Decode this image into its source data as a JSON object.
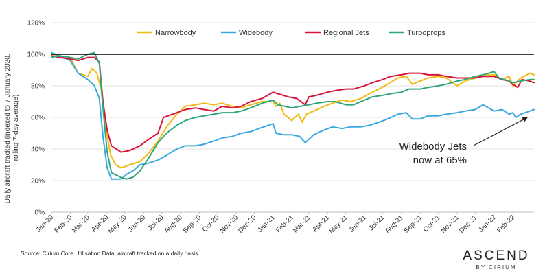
{
  "chart_data": {
    "type": "line",
    "title": "",
    "ylabel_lines": [
      "Daily aircraft tracked (indexed to 7 January 2020,",
      "rolling 7-day average)"
    ],
    "xlabel": "",
    "ylim": [
      0,
      120
    ],
    "yticks": [
      0,
      20,
      40,
      60,
      80,
      100,
      120
    ],
    "ytick_labels": [
      "0%",
      "20%",
      "40%",
      "60%",
      "80%",
      "100%",
      "120%"
    ],
    "x_start": "2020-01-07",
    "x_end": "2022-03-14",
    "x_ticks": [
      {
        "date": "2020-01-07",
        "label": "Jan-20"
      },
      {
        "date": "2020-02-07",
        "label": "Feb-20"
      },
      {
        "date": "2020-03-07",
        "label": "Mar-20"
      },
      {
        "date": "2020-04-07",
        "label": "Apr-20"
      },
      {
        "date": "2020-05-07",
        "label": "May-20"
      },
      {
        "date": "2020-06-07",
        "label": "Jun-20"
      },
      {
        "date": "2020-07-07",
        "label": "Jul-20"
      },
      {
        "date": "2020-08-07",
        "label": "Aug-20"
      },
      {
        "date": "2020-09-07",
        "label": "Sep-20"
      },
      {
        "date": "2020-10-07",
        "label": "Oct-20"
      },
      {
        "date": "2020-11-07",
        "label": "Nov-20"
      },
      {
        "date": "2020-12-07",
        "label": "Dec-20"
      },
      {
        "date": "2021-01-07",
        "label": "Jan-21"
      },
      {
        "date": "2021-02-07",
        "label": "Feb-21"
      },
      {
        "date": "2021-03-07",
        "label": "Mar-21"
      },
      {
        "date": "2021-04-07",
        "label": "Apr-21"
      },
      {
        "date": "2021-05-07",
        "label": "May-21"
      },
      {
        "date": "2021-06-07",
        "label": "Jun-21"
      },
      {
        "date": "2021-07-07",
        "label": "Jul-21"
      },
      {
        "date": "2021-08-07",
        "label": "Aug-21"
      },
      {
        "date": "2021-09-07",
        "label": "Sep-21"
      },
      {
        "date": "2021-10-07",
        "label": "Oct-21"
      },
      {
        "date": "2021-11-07",
        "label": "Nov-21"
      },
      {
        "date": "2021-12-07",
        "label": "Dec-21"
      },
      {
        "date": "2022-01-07",
        "label": "Jan-22"
      },
      {
        "date": "2022-02-07",
        "label": "Feb-22"
      }
    ],
    "reference_line": {
      "y": 100,
      "color": "#000000"
    },
    "legend_position": "top",
    "grid": {
      "horizontal": true,
      "vertical": false
    },
    "series": [
      {
        "name": "Narrowbody",
        "color": "#F2B90F",
        "points": [
          [
            "2020-01-07",
            100
          ],
          [
            "2020-01-20",
            99
          ],
          [
            "2020-02-07",
            98
          ],
          [
            "2020-02-20",
            88
          ],
          [
            "2020-03-07",
            86
          ],
          [
            "2020-03-14",
            91
          ],
          [
            "2020-03-22",
            88
          ],
          [
            "2020-03-29",
            78
          ],
          [
            "2020-04-07",
            50
          ],
          [
            "2020-04-14",
            36
          ],
          [
            "2020-04-22",
            30
          ],
          [
            "2020-05-01",
            28
          ],
          [
            "2020-05-15",
            30
          ],
          [
            "2020-06-01",
            32
          ],
          [
            "2020-06-15",
            37
          ],
          [
            "2020-07-01",
            45
          ],
          [
            "2020-07-15",
            54
          ],
          [
            "2020-08-01",
            62
          ],
          [
            "2020-08-15",
            67
          ],
          [
            "2020-09-01",
            68
          ],
          [
            "2020-09-15",
            69
          ],
          [
            "2020-10-01",
            68
          ],
          [
            "2020-10-15",
            69
          ],
          [
            "2020-11-01",
            67
          ],
          [
            "2020-11-15",
            66
          ],
          [
            "2020-12-01",
            68
          ],
          [
            "2020-12-20",
            70
          ],
          [
            "2021-01-07",
            70
          ],
          [
            "2021-01-12",
            67
          ],
          [
            "2021-01-18",
            69
          ],
          [
            "2021-01-25",
            62
          ],
          [
            "2021-02-01",
            60
          ],
          [
            "2021-02-07",
            58
          ],
          [
            "2021-02-12",
            60
          ],
          [
            "2021-02-18",
            62
          ],
          [
            "2021-02-24",
            57
          ],
          [
            "2021-03-03",
            62
          ],
          [
            "2021-03-15",
            64
          ],
          [
            "2021-04-01",
            67
          ],
          [
            "2021-04-15",
            69
          ],
          [
            "2021-05-01",
            71
          ],
          [
            "2021-05-15",
            70
          ],
          [
            "2021-06-01",
            72
          ],
          [
            "2021-06-15",
            75
          ],
          [
            "2021-07-01",
            78
          ],
          [
            "2021-07-15",
            81
          ],
          [
            "2021-08-01",
            85
          ],
          [
            "2021-08-15",
            86
          ],
          [
            "2021-08-25",
            81
          ],
          [
            "2021-09-07",
            83
          ],
          [
            "2021-09-20",
            85
          ],
          [
            "2021-10-07",
            86
          ],
          [
            "2021-10-20",
            85
          ],
          [
            "2021-11-07",
            80
          ],
          [
            "2021-11-20",
            83
          ],
          [
            "2021-12-07",
            85
          ],
          [
            "2021-12-20",
            87
          ],
          [
            "2022-01-07",
            87
          ],
          [
            "2022-01-20",
            84
          ],
          [
            "2022-02-01",
            86
          ],
          [
            "2022-02-07",
            80
          ],
          [
            "2022-02-20",
            85
          ],
          [
            "2022-03-07",
            88
          ],
          [
            "2022-03-14",
            87
          ]
        ]
      },
      {
        "name": "Widebody",
        "color": "#3AA8E0",
        "points": [
          [
            "2020-01-07",
            101
          ],
          [
            "2020-01-20",
            99
          ],
          [
            "2020-02-07",
            96
          ],
          [
            "2020-02-20",
            88
          ],
          [
            "2020-03-07",
            84
          ],
          [
            "2020-03-18",
            80
          ],
          [
            "2020-03-26",
            72
          ],
          [
            "2020-04-01",
            48
          ],
          [
            "2020-04-08",
            28
          ],
          [
            "2020-04-15",
            21
          ],
          [
            "2020-05-01",
            21
          ],
          [
            "2020-05-10",
            24
          ],
          [
            "2020-05-20",
            26
          ],
          [
            "2020-06-01",
            30
          ],
          [
            "2020-06-15",
            31
          ],
          [
            "2020-07-01",
            33
          ],
          [
            "2020-07-15",
            36
          ],
          [
            "2020-08-01",
            40
          ],
          [
            "2020-08-15",
            42
          ],
          [
            "2020-09-01",
            42
          ],
          [
            "2020-09-15",
            43
          ],
          [
            "2020-10-01",
            45
          ],
          [
            "2020-10-15",
            47
          ],
          [
            "2020-11-01",
            48
          ],
          [
            "2020-11-15",
            50
          ],
          [
            "2020-12-01",
            51
          ],
          [
            "2020-12-15",
            53
          ],
          [
            "2021-01-07",
            56
          ],
          [
            "2021-01-12",
            50
          ],
          [
            "2021-01-25",
            49
          ],
          [
            "2021-02-07",
            49
          ],
          [
            "2021-02-20",
            48
          ],
          [
            "2021-03-01",
            44
          ],
          [
            "2021-03-15",
            49
          ],
          [
            "2021-04-01",
            52
          ],
          [
            "2021-04-15",
            54
          ],
          [
            "2021-05-01",
            53
          ],
          [
            "2021-05-15",
            54
          ],
          [
            "2021-06-01",
            54
          ],
          [
            "2021-06-15",
            55
          ],
          [
            "2021-07-01",
            57
          ],
          [
            "2021-07-15",
            59
          ],
          [
            "2021-08-01",
            62
          ],
          [
            "2021-08-15",
            63
          ],
          [
            "2021-08-25",
            59
          ],
          [
            "2021-09-07",
            59
          ],
          [
            "2021-09-20",
            61
          ],
          [
            "2021-10-07",
            61
          ],
          [
            "2021-10-20",
            62
          ],
          [
            "2021-11-07",
            63
          ],
          [
            "2021-11-20",
            64
          ],
          [
            "2021-12-07",
            65
          ],
          [
            "2021-12-20",
            68
          ],
          [
            "2022-01-07",
            64
          ],
          [
            "2022-01-20",
            65
          ],
          [
            "2022-02-01",
            62
          ],
          [
            "2022-02-07",
            63
          ],
          [
            "2022-02-12",
            60
          ],
          [
            "2022-02-20",
            62
          ],
          [
            "2022-03-07",
            64
          ],
          [
            "2022-03-14",
            65
          ]
        ]
      },
      {
        "name": "Regional Jets",
        "color": "#D8143A",
        "points": [
          [
            "2020-01-07",
            99
          ],
          [
            "2020-01-20",
            98
          ],
          [
            "2020-02-07",
            97
          ],
          [
            "2020-02-20",
            96
          ],
          [
            "2020-03-07",
            98
          ],
          [
            "2020-03-18",
            98
          ],
          [
            "2020-03-26",
            95
          ],
          [
            "2020-04-01",
            70
          ],
          [
            "2020-04-08",
            52
          ],
          [
            "2020-04-15",
            42
          ],
          [
            "2020-05-01",
            38
          ],
          [
            "2020-05-15",
            39
          ],
          [
            "2020-06-01",
            42
          ],
          [
            "2020-06-15",
            46
          ],
          [
            "2020-07-01",
            50
          ],
          [
            "2020-07-10",
            60
          ],
          [
            "2020-08-01",
            63
          ],
          [
            "2020-08-15",
            65
          ],
          [
            "2020-09-01",
            66
          ],
          [
            "2020-09-15",
            65
          ],
          [
            "2020-10-01",
            64
          ],
          [
            "2020-10-15",
            67
          ],
          [
            "2020-11-01",
            66
          ],
          [
            "2020-11-15",
            67
          ],
          [
            "2020-12-01",
            70
          ],
          [
            "2020-12-20",
            72
          ],
          [
            "2021-01-07",
            76
          ],
          [
            "2021-01-15",
            75
          ],
          [
            "2021-02-01",
            73
          ],
          [
            "2021-02-15",
            72
          ],
          [
            "2021-03-01",
            68
          ],
          [
            "2021-03-07",
            73
          ],
          [
            "2021-03-20",
            74
          ],
          [
            "2021-04-07",
            76
          ],
          [
            "2021-04-20",
            77
          ],
          [
            "2021-05-07",
            78
          ],
          [
            "2021-05-20",
            78
          ],
          [
            "2021-06-07",
            80
          ],
          [
            "2021-06-20",
            82
          ],
          [
            "2021-07-07",
            84
          ],
          [
            "2021-07-20",
            86
          ],
          [
            "2021-08-07",
            87
          ],
          [
            "2021-08-20",
            88
          ],
          [
            "2021-09-07",
            88
          ],
          [
            "2021-09-20",
            87
          ],
          [
            "2021-10-07",
            87
          ],
          [
            "2021-10-20",
            86
          ],
          [
            "2021-11-07",
            85
          ],
          [
            "2021-11-20",
            85
          ],
          [
            "2021-12-07",
            85
          ],
          [
            "2021-12-20",
            86
          ],
          [
            "2022-01-07",
            86
          ],
          [
            "2022-01-20",
            84
          ],
          [
            "2022-02-01",
            83
          ],
          [
            "2022-02-07",
            81
          ],
          [
            "2022-02-15",
            79
          ],
          [
            "2022-02-22",
            84
          ],
          [
            "2022-03-07",
            83
          ],
          [
            "2022-03-14",
            82
          ]
        ]
      },
      {
        "name": "Turboprops",
        "color": "#2EA87A",
        "points": [
          [
            "2020-01-07",
            98
          ],
          [
            "2020-01-20",
            99
          ],
          [
            "2020-02-07",
            98
          ],
          [
            "2020-02-20",
            97
          ],
          [
            "2020-03-07",
            100
          ],
          [
            "2020-03-18",
            101
          ],
          [
            "2020-03-26",
            94
          ],
          [
            "2020-04-01",
            66
          ],
          [
            "2020-04-08",
            38
          ],
          [
            "2020-04-15",
            25
          ],
          [
            "2020-05-01",
            22
          ],
          [
            "2020-05-10",
            21
          ],
          [
            "2020-05-20",
            22
          ],
          [
            "2020-06-01",
            26
          ],
          [
            "2020-06-15",
            34
          ],
          [
            "2020-07-01",
            44
          ],
          [
            "2020-07-15",
            50
          ],
          [
            "2020-08-01",
            55
          ],
          [
            "2020-08-15",
            58
          ],
          [
            "2020-09-01",
            60
          ],
          [
            "2020-09-15",
            61
          ],
          [
            "2020-10-01",
            62
          ],
          [
            "2020-10-15",
            63
          ],
          [
            "2020-11-01",
            63
          ],
          [
            "2020-11-15",
            64
          ],
          [
            "2020-12-01",
            66
          ],
          [
            "2020-12-20",
            69
          ],
          [
            "2021-01-07",
            71
          ],
          [
            "2021-01-15",
            68
          ],
          [
            "2021-02-07",
            66
          ],
          [
            "2021-02-20",
            67
          ],
          [
            "2021-03-07",
            68
          ],
          [
            "2021-03-20",
            69
          ],
          [
            "2021-04-07",
            70
          ],
          [
            "2021-04-20",
            70
          ],
          [
            "2021-05-07",
            68
          ],
          [
            "2021-05-20",
            68
          ],
          [
            "2021-06-07",
            71
          ],
          [
            "2021-06-20",
            73
          ],
          [
            "2021-07-07",
            74
          ],
          [
            "2021-07-20",
            75
          ],
          [
            "2021-08-07",
            76
          ],
          [
            "2021-08-20",
            78
          ],
          [
            "2021-09-07",
            78
          ],
          [
            "2021-09-20",
            79
          ],
          [
            "2021-10-07",
            80
          ],
          [
            "2021-10-20",
            81
          ],
          [
            "2021-11-07",
            83
          ],
          [
            "2021-11-20",
            84
          ],
          [
            "2021-12-07",
            86
          ],
          [
            "2021-12-20",
            87
          ],
          [
            "2022-01-07",
            89
          ],
          [
            "2022-01-15",
            85
          ],
          [
            "2022-02-01",
            83
          ],
          [
            "2022-02-07",
            82
          ],
          [
            "2022-02-20",
            83
          ],
          [
            "2022-03-07",
            84
          ],
          [
            "2022-03-14",
            84
          ]
        ]
      }
    ],
    "annotation": {
      "lines": [
        "Widebody Jets",
        "now at 65%"
      ],
      "target": {
        "date": "2022-03-03",
        "y": 60
      }
    }
  },
  "source_text": "Source: Cirium Core Utilisation Data, aircraft tracked on a daily basis",
  "brand": {
    "main": "ASCEND",
    "sub": "BY CIRIUM"
  }
}
